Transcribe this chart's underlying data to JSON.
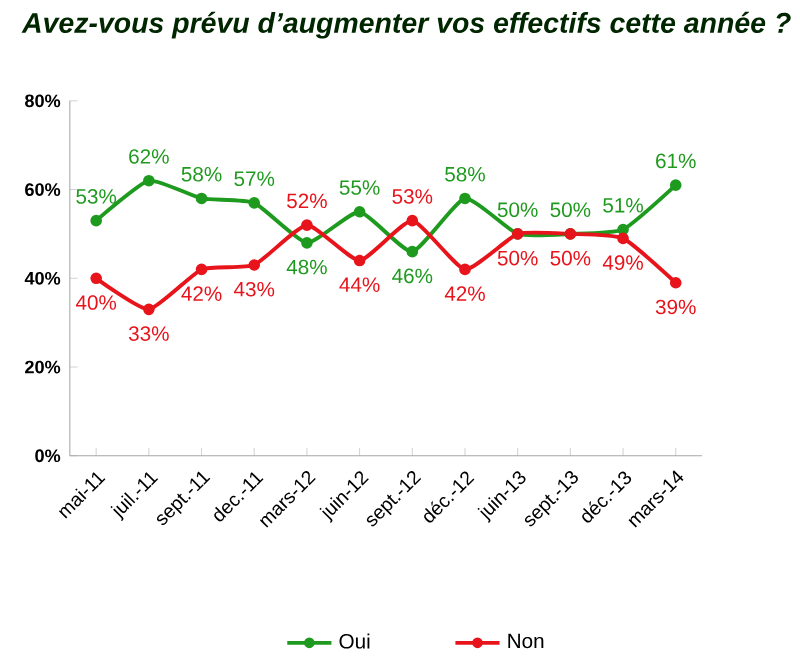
{
  "chart_data": {
    "type": "line",
    "title": "Avez-vous prévu d’augmenter vos effectifs cette année ?",
    "categories": [
      "mai-11",
      "juil.-11",
      "sept.-11",
      "dec.-11",
      "mars-12",
      "juin-12",
      "sept.-12",
      "déc.-12",
      "juin-13",
      "sept.-13",
      "déc.-13",
      "mars-14"
    ],
    "series": [
      {
        "name": "Oui",
        "color": "#1e9a1e",
        "values": [
          53,
          62,
          58,
          57,
          48,
          55,
          46,
          58,
          50,
          50,
          51,
          61
        ],
        "value_labels": [
          "53%",
          "62%",
          "58%",
          "57%",
          "48%",
          "55%",
          "46%",
          "58%",
          "50%",
          "50%",
          "51%",
          "61%"
        ]
      },
      {
        "name": "Non",
        "color": "#e8141c",
        "values": [
          40,
          33,
          42,
          43,
          52,
          44,
          53,
          42,
          50,
          50,
          49,
          39
        ],
        "value_labels": [
          "40%",
          "33%",
          "42%",
          "43%",
          "52%",
          "44%",
          "53%",
          "42%",
          "50%",
          "50%",
          "49%",
          "39%"
        ]
      }
    ],
    "ylim": [
      0,
      80
    ],
    "yticks": [
      {
        "value": 0,
        "label": "0%"
      },
      {
        "value": 20,
        "label": "20%"
      },
      {
        "value": 40,
        "label": "40%"
      },
      {
        "value": 60,
        "label": "60%"
      },
      {
        "value": 80,
        "label": "80%"
      }
    ],
    "marker": "circle",
    "legend": "bottom",
    "grid": false
  }
}
